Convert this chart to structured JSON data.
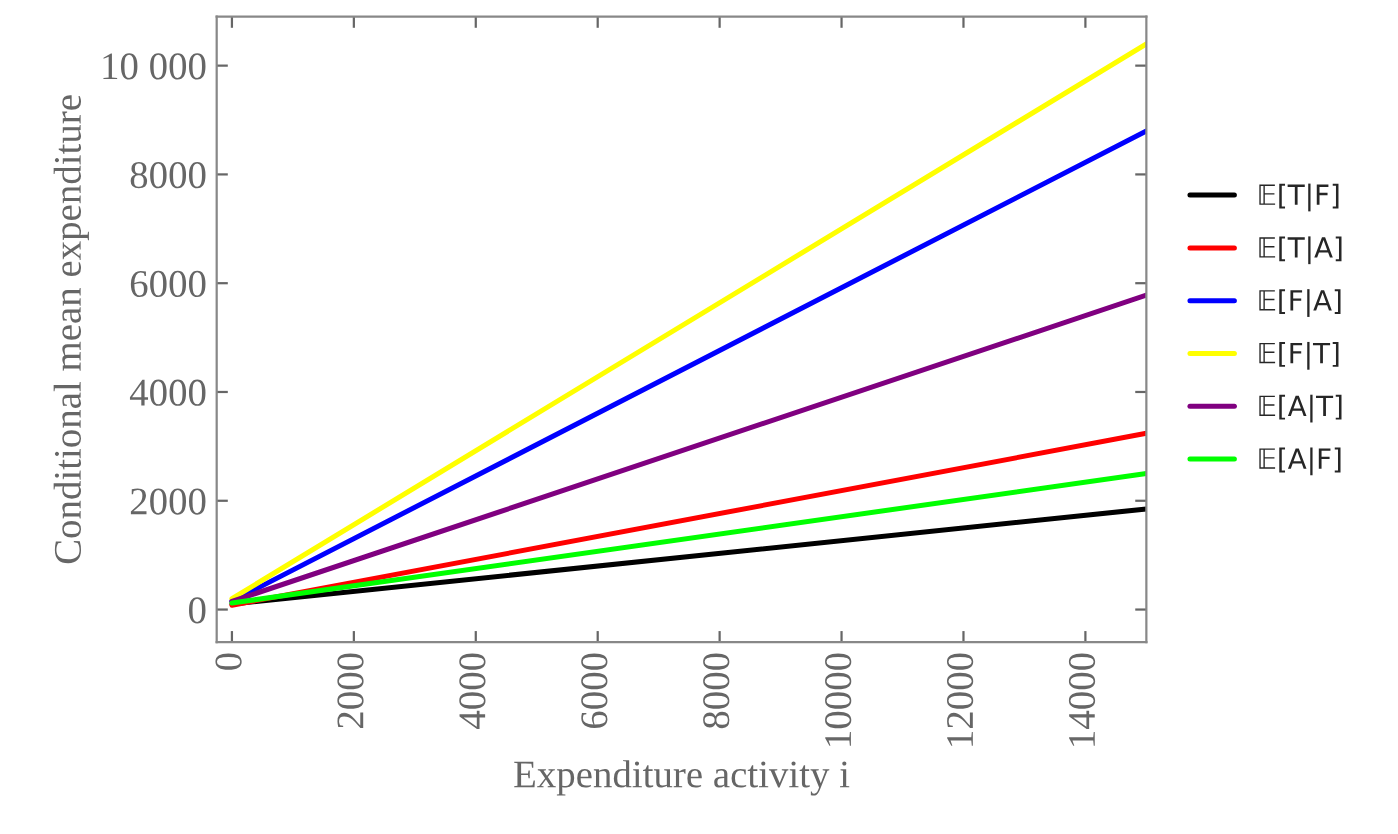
{
  "chart_data": {
    "type": "line",
    "xlabel": "Expenditure activity i",
    "ylabel": "Conditional mean expenditure",
    "x": [
      0,
      15000
    ],
    "series": [
      {
        "name": "𝔼[T|F]",
        "color": "#000000",
        "values": [
          100,
          1850
        ]
      },
      {
        "name": "𝔼[T|A]",
        "color": "#ff0000",
        "values": [
          80,
          3240
        ]
      },
      {
        "name": "𝔼[F|A]",
        "color": "#0000ff",
        "values": [
          150,
          8800
        ]
      },
      {
        "name": "𝔼[F|T]",
        "color": "#ffff00",
        "values": [
          200,
          10400
        ]
      },
      {
        "name": "𝔼[A|T]",
        "color": "#800080",
        "values": [
          150,
          5780
        ]
      },
      {
        "name": "𝔼[A|F]",
        "color": "#00ff00",
        "values": [
          120,
          2500
        ]
      }
    ],
    "xlim": [
      -250,
      15000
    ],
    "ylim": [
      -600,
      10900
    ],
    "xticks": [
      0,
      2000,
      4000,
      6000,
      8000,
      10000,
      12000,
      14000
    ],
    "yticks": [
      0,
      2000,
      4000,
      6000,
      8000,
      {
        "value": 10000,
        "label": "10 000"
      }
    ],
    "legend": "right",
    "grid": false,
    "line_style": "solid",
    "marker": "none"
  }
}
